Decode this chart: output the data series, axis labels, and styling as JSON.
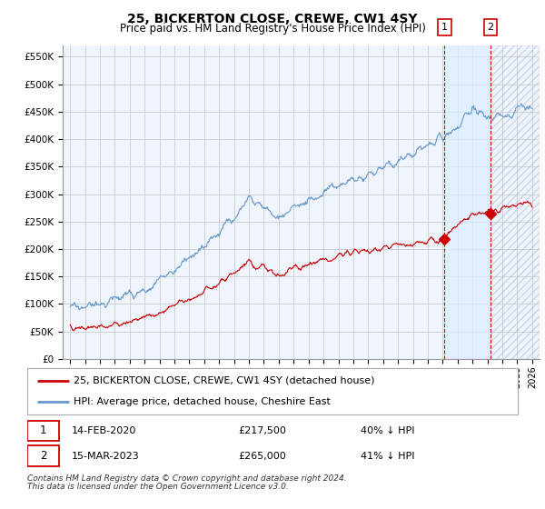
{
  "title": "25, BICKERTON CLOSE, CREWE, CW1 4SY",
  "subtitle": "Price paid vs. HM Land Registry's House Price Index (HPI)",
  "ylabel_ticks": [
    0,
    50000,
    100000,
    150000,
    200000,
    250000,
    300000,
    350000,
    400000,
    450000,
    500000,
    550000
  ],
  "ylabel_labels": [
    "£0",
    "£50K",
    "£100K",
    "£150K",
    "£200K",
    "£250K",
    "£300K",
    "£350K",
    "£400K",
    "£450K",
    "£500K",
    "£550K"
  ],
  "xlim": [
    1994.5,
    2026.5
  ],
  "ylim": [
    0,
    570000
  ],
  "hpi_color": "#6699CC",
  "sale_color": "#CC0000",
  "grid_color": "#CCCCCC",
  "background_chart": "#F0F4FC",
  "legend_label_red": "25, BICKERTON CLOSE, CREWE, CW1 4SY (detached house)",
  "legend_label_blue": "HPI: Average price, detached house, Cheshire East",
  "transaction1_num": "1",
  "transaction1_date": "14-FEB-2020",
  "transaction1_price": "£217,500",
  "transaction1_hpi": "40% ↓ HPI",
  "transaction1_year": 2020.12,
  "transaction1_value": 217500,
  "transaction2_num": "2",
  "transaction2_date": "15-MAR-2023",
  "transaction2_price": "£265,000",
  "transaction2_hpi": "41% ↓ HPI",
  "transaction2_year": 2023.21,
  "transaction2_value": 265000,
  "footnote_line1": "Contains HM Land Registry data © Crown copyright and database right 2024.",
  "footnote_line2": "This data is licensed under the Open Government Licence v3.0.",
  "title_fontsize": 10,
  "subtitle_fontsize": 8.5,
  "tick_fontsize": 7.5,
  "legend_fontsize": 8,
  "footnote_fontsize": 6.5
}
